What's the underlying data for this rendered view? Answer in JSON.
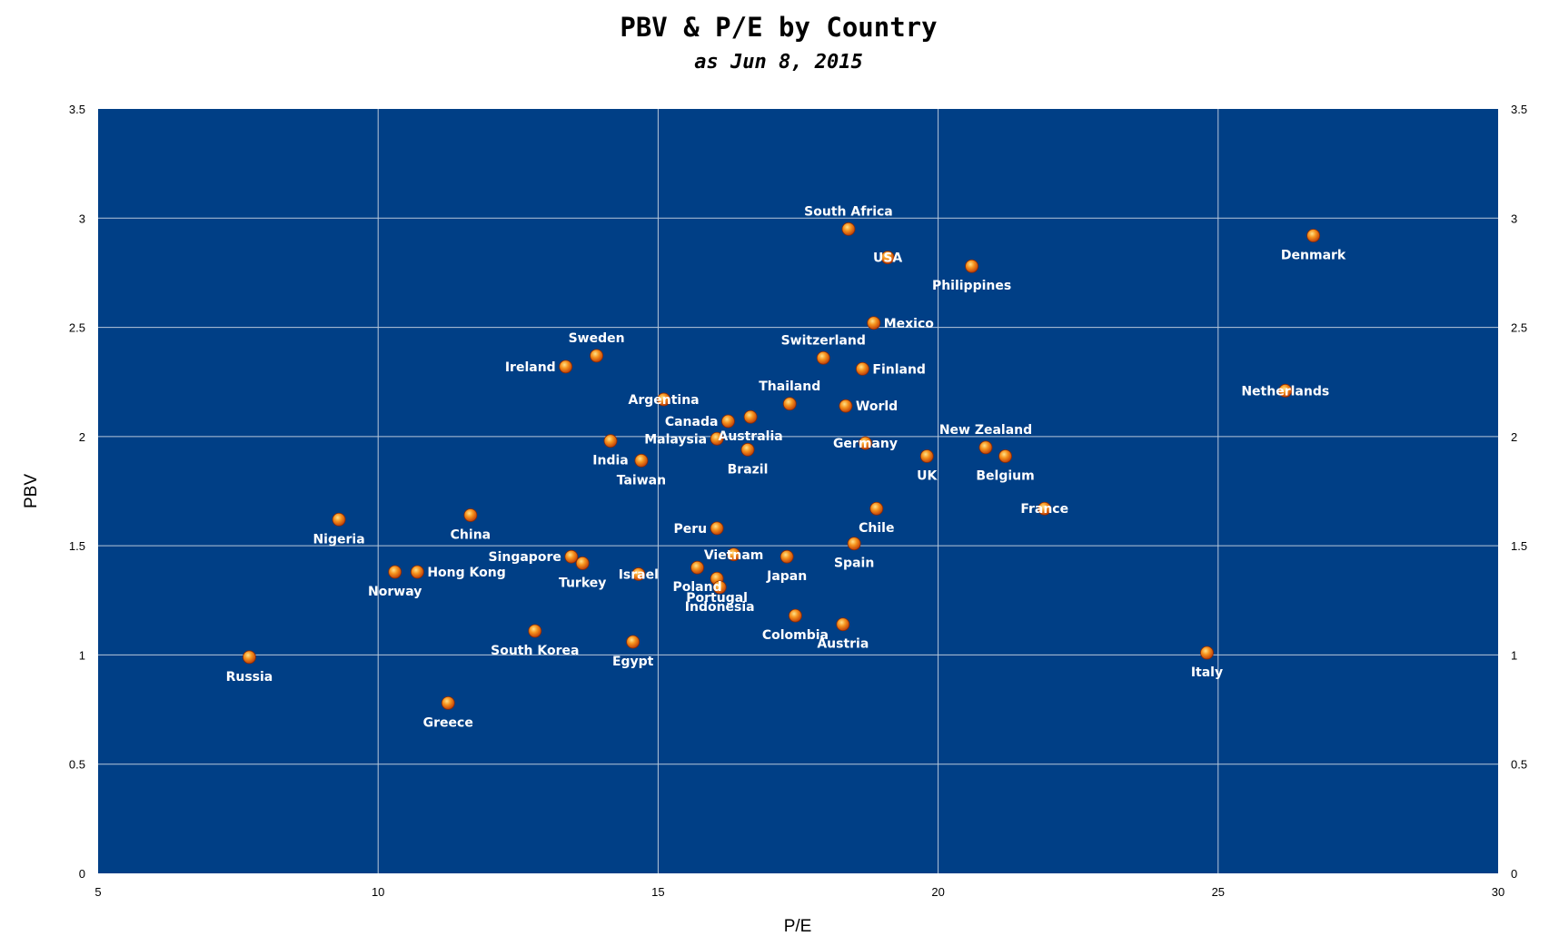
{
  "chart_data": {
    "type": "scatter",
    "title": "PBV & P/E by Country",
    "subtitle": "as Jun 8, 2015",
    "xlabel": "P/E",
    "ylabel": "PBV",
    "xlim": [
      5,
      30
    ],
    "ylim": [
      0,
      3.5
    ],
    "x_ticks": [
      "5",
      "10",
      "15",
      "20",
      "25",
      "30"
    ],
    "y_ticks": [
      "0",
      "0.5",
      "1",
      "1.5",
      "2",
      "2.5",
      "3",
      "3.5"
    ],
    "grid": true,
    "legend": "none",
    "colors": {
      "plot_background": "#003f86",
      "marker": "#f07a10",
      "marker_highlight": "#ffd37a",
      "label": "#ffffff"
    },
    "points": [
      {
        "label": "South Africa",
        "x": 18.4,
        "y": 2.95,
        "pos": "above"
      },
      {
        "label": "USA",
        "x": 19.1,
        "y": 2.82,
        "pos": "center"
      },
      {
        "label": "Denmark",
        "x": 26.7,
        "y": 2.92,
        "pos": "below"
      },
      {
        "label": "Philippines",
        "x": 20.6,
        "y": 2.78,
        "pos": "below"
      },
      {
        "label": "Mexico",
        "x": 18.85,
        "y": 2.52,
        "pos": "right"
      },
      {
        "label": "Switzerland",
        "x": 17.95,
        "y": 2.36,
        "pos": "above"
      },
      {
        "label": "Finland",
        "x": 18.65,
        "y": 2.31,
        "pos": "right"
      },
      {
        "label": "Sweden",
        "x": 13.9,
        "y": 2.37,
        "pos": "above"
      },
      {
        "label": "Ireland",
        "x": 13.35,
        "y": 2.32,
        "pos": "left"
      },
      {
        "label": "Netherlands",
        "x": 26.2,
        "y": 2.21,
        "pos": "center"
      },
      {
        "label": "Argentina",
        "x": 15.1,
        "y": 2.17,
        "pos": "center"
      },
      {
        "label": "Thailand",
        "x": 17.35,
        "y": 2.15,
        "pos": "above"
      },
      {
        "label": "World",
        "x": 18.35,
        "y": 2.14,
        "pos": "right"
      },
      {
        "label": "Canada",
        "x": 16.25,
        "y": 2.07,
        "pos": "left"
      },
      {
        "label": "Australia",
        "x": 16.65,
        "y": 2.09,
        "pos": "below"
      },
      {
        "label": "Malaysia",
        "x": 16.05,
        "y": 1.99,
        "pos": "left"
      },
      {
        "label": "India",
        "x": 14.15,
        "y": 1.98,
        "pos": "below"
      },
      {
        "label": "Germany",
        "x": 18.7,
        "y": 1.97,
        "pos": "center"
      },
      {
        "label": "New Zealand",
        "x": 20.85,
        "y": 1.95,
        "pos": "above"
      },
      {
        "label": "Brazil",
        "x": 16.6,
        "y": 1.94,
        "pos": "below"
      },
      {
        "label": "UK",
        "x": 19.8,
        "y": 1.91,
        "pos": "below"
      },
      {
        "label": "Belgium",
        "x": 21.2,
        "y": 1.91,
        "pos": "below"
      },
      {
        "label": "Taiwan",
        "x": 14.7,
        "y": 1.89,
        "pos": "below"
      },
      {
        "label": "France",
        "x": 21.9,
        "y": 1.67,
        "pos": "center"
      },
      {
        "label": "Chile",
        "x": 18.9,
        "y": 1.67,
        "pos": "below"
      },
      {
        "label": "China",
        "x": 11.65,
        "y": 1.64,
        "pos": "below"
      },
      {
        "label": "Nigeria",
        "x": 9.3,
        "y": 1.62,
        "pos": "below"
      },
      {
        "label": "Peru",
        "x": 16.05,
        "y": 1.58,
        "pos": "left"
      },
      {
        "label": "Spain",
        "x": 18.5,
        "y": 1.51,
        "pos": "below"
      },
      {
        "label": "Vietnam",
        "x": 16.35,
        "y": 1.46,
        "pos": "center"
      },
      {
        "label": "Singapore",
        "x": 13.45,
        "y": 1.45,
        "pos": "left"
      },
      {
        "label": "Japan",
        "x": 17.3,
        "y": 1.45,
        "pos": "below"
      },
      {
        "label": "Turkey",
        "x": 13.65,
        "y": 1.42,
        "pos": "below"
      },
      {
        "label": "Poland",
        "x": 15.7,
        "y": 1.4,
        "pos": "below"
      },
      {
        "label": "Norway",
        "x": 10.3,
        "y": 1.38,
        "pos": "below"
      },
      {
        "label": "Hong Kong",
        "x": 10.7,
        "y": 1.38,
        "pos": "right"
      },
      {
        "label": "Israel",
        "x": 14.65,
        "y": 1.37,
        "pos": "center"
      },
      {
        "label": "Portugal",
        "x": 16.05,
        "y": 1.35,
        "pos": "below"
      },
      {
        "label": "Indonesia",
        "x": 16.1,
        "y": 1.31,
        "pos": "below"
      },
      {
        "label": "Colombia",
        "x": 17.45,
        "y": 1.18,
        "pos": "below"
      },
      {
        "label": "Austria",
        "x": 18.3,
        "y": 1.14,
        "pos": "below"
      },
      {
        "label": "South Korea",
        "x": 12.8,
        "y": 1.11,
        "pos": "below"
      },
      {
        "label": "Egypt",
        "x": 14.55,
        "y": 1.06,
        "pos": "below"
      },
      {
        "label": "Italy",
        "x": 24.8,
        "y": 1.01,
        "pos": "below"
      },
      {
        "label": "Russia",
        "x": 7.7,
        "y": 0.99,
        "pos": "below"
      },
      {
        "label": "Greece",
        "x": 11.25,
        "y": 0.78,
        "pos": "below"
      }
    ]
  }
}
